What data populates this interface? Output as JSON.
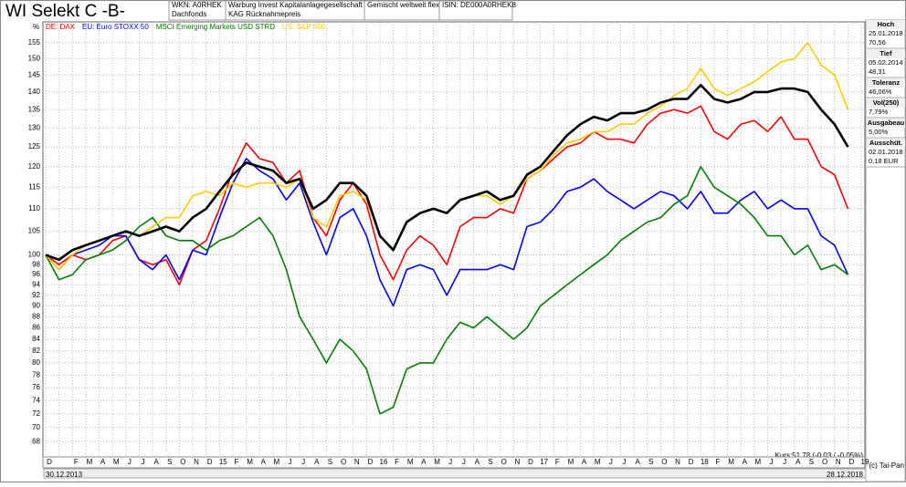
{
  "header": {
    "title": "WI Selekt C -B-",
    "cells": [
      [
        "WKN: A0RHEK",
        "Dachfonds"
      ],
      [
        "Warburg Invest Kapitalanlagegesellschaft",
        "KAG Rücknahmepreis"
      ],
      [
        "Gemischt weltweit flexibel"
      ],
      [
        "ISIN: DE000A0RHEK8"
      ]
    ]
  },
  "side_panel": [
    {
      "label": "Hoch",
      "lines": [
        "25.01.2018",
        "70,56"
      ]
    },
    {
      "label": "Tief",
      "lines": [
        "05.02.2014",
        "48,31"
      ]
    },
    {
      "label": "Toleranz",
      "lines": [
        "46,06%"
      ]
    },
    {
      "label": "Vol(250)",
      "lines": [
        "7,79%"
      ]
    },
    {
      "label": "Ausgabeau",
      "lines": [
        "5,00%"
      ]
    },
    {
      "label": "Ausschüt.",
      "lines": [
        "02.01.2018",
        "0,18 EUR"
      ]
    }
  ],
  "footer": {
    "quote": "Kurs:51,78 (-0,03 / -0,05%)",
    "copyright": "(c) Tai-Pan",
    "start": "30.12.2013",
    "end": "28.12.2018"
  },
  "chart_data": {
    "type": "line",
    "y_unit": "%",
    "log_scale": true,
    "grid": true,
    "ylim": [
      66,
      160
    ],
    "yticks": [
      68,
      70,
      72,
      74,
      76,
      78,
      80,
      82,
      84,
      86,
      88,
      90,
      92,
      94,
      96,
      98,
      100,
      105,
      110,
      115,
      120,
      125,
      130,
      135,
      140,
      145,
      150,
      155
    ],
    "categories": [
      "D",
      null,
      "F",
      "M",
      "A",
      "M",
      "J",
      "J",
      "A",
      "S",
      "O",
      "N",
      "D",
      "15",
      "F",
      "M",
      "A",
      "M",
      "J",
      "J",
      "A",
      "S",
      "O",
      "N",
      "D",
      "16",
      "F",
      "M",
      "A",
      "M",
      "J",
      "J",
      "A",
      "S",
      "O",
      "N",
      "D",
      "17",
      "F",
      "M",
      "A",
      "M",
      "J",
      "J",
      "A",
      "S",
      "O",
      "N",
      "D",
      "18",
      "F",
      "M",
      "A",
      "M",
      "J",
      "J",
      "A",
      "S",
      "O",
      "N",
      "D",
      "19"
    ],
    "series": [
      {
        "name": "DE: DAX",
        "color": "#ff0000",
        "values": [
          100,
          98,
          100,
          99,
          100,
          103,
          104,
          99,
          98,
          99,
          94,
          101,
          103,
          110,
          119,
          126,
          122,
          121,
          116,
          119,
          108,
          104,
          112,
          116,
          111,
          100,
          95,
          101,
          104,
          102,
          98,
          106,
          108,
          108,
          110,
          109,
          117,
          119,
          122,
          125,
          126,
          129,
          127,
          127,
          126,
          131,
          134,
          135,
          134,
          136,
          129,
          127,
          131,
          132,
          129,
          133,
          127,
          127,
          120,
          118,
          110,
          null
        ]
      },
      {
        "name": "EU: Euro STOXX 50",
        "color": "#0000ff",
        "values": [
          100,
          97,
          100,
          101,
          102,
          104,
          104,
          99,
          97,
          100,
          95,
          101,
          100,
          108,
          116,
          122,
          119,
          117,
          112,
          116,
          107,
          100,
          108,
          110,
          104,
          95,
          90,
          97,
          98,
          97,
          92,
          97,
          97,
          97,
          98,
          97,
          106,
          107,
          110,
          114,
          115,
          117,
          114,
          112,
          110,
          112,
          114,
          113,
          110,
          114,
          109,
          109,
          112,
          114,
          110,
          112,
          110,
          110,
          104,
          102,
          96,
          null
        ]
      },
      {
        "name": "MSCI Emerging Markets USD STRD",
        "color": "#008000",
        "values": [
          100,
          95,
          96,
          99,
          100,
          101,
          103,
          106,
          108,
          104,
          103,
          103,
          101,
          103,
          104,
          106,
          108,
          104,
          97,
          88,
          84,
          80,
          84,
          82,
          79,
          72,
          73,
          79,
          80,
          80,
          84,
          87,
          86,
          88,
          86,
          84,
          86,
          90,
          92,
          94,
          96,
          98,
          100,
          103,
          105,
          107,
          108,
          111,
          113,
          120,
          115,
          113,
          111,
          108,
          104,
          104,
          100,
          102,
          97,
          98,
          96,
          null
        ]
      },
      {
        "name": "US: S&P 500",
        "color": "#ffcc00",
        "values": [
          100,
          97,
          100,
          102,
          103,
          104,
          105,
          104,
          106,
          108,
          108,
          113,
          114,
          113,
          116,
          115,
          116,
          116,
          115,
          117,
          108,
          106,
          113,
          114,
          112,
          104,
          101,
          107,
          109,
          110,
          109,
          112,
          113,
          113,
          111,
          113,
          117,
          119,
          123,
          126,
          127,
          129,
          129,
          131,
          131,
          134,
          136,
          139,
          141,
          147,
          141,
          139,
          141,
          143,
          146,
          149,
          150,
          155,
          148,
          145,
          135,
          null
        ]
      },
      {
        "color": "#000000",
        "values": [
          100,
          99,
          101,
          102,
          103,
          104,
          105,
          104,
          105,
          106,
          105,
          108,
          110,
          114,
          118,
          121,
          120,
          119,
          116,
          117,
          110,
          112,
          116,
          116,
          113,
          104,
          101,
          107,
          109,
          110,
          109,
          112,
          113,
          114,
          112,
          113,
          118,
          120,
          124,
          128,
          131,
          133,
          132,
          134,
          134,
          135,
          137,
          138,
          138,
          142,
          138,
          137,
          138,
          140,
          140,
          141,
          141,
          140,
          135,
          131,
          125,
          null
        ]
      }
    ]
  }
}
